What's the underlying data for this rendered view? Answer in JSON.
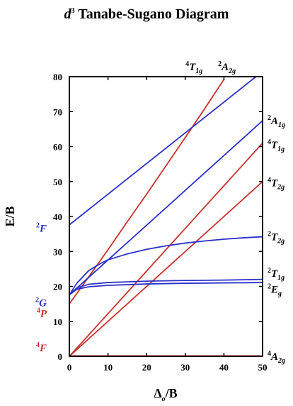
{
  "chart_data": {
    "type": "line",
    "title": {
      "prefix": "d",
      "sup": "3",
      "text": " Tanabe-Sugano Diagram"
    },
    "xlabel": {
      "main": "Δ",
      "sub": "o",
      "rest": "/B"
    },
    "ylabel": "E/B",
    "xlim": [
      0,
      50
    ],
    "ylim": [
      0,
      80
    ],
    "xticks": [
      0,
      10,
      20,
      30,
      40,
      50
    ],
    "yticks": [
      0,
      10,
      20,
      30,
      40,
      50,
      60,
      70,
      80
    ],
    "grid": false,
    "colors": {
      "red": "#c8322c",
      "blue": "#2a30c8"
    },
    "series": [
      {
        "color": "red",
        "x": [
          0,
          50
        ],
        "y": [
          0,
          0
        ]
      },
      {
        "color": "red",
        "x": [
          0,
          50
        ],
        "y": [
          0,
          50
        ]
      },
      {
        "color": "red",
        "x": [
          0,
          50
        ],
        "y": [
          0,
          61
        ]
      },
      {
        "color": "red",
        "x": [
          0,
          5,
          10,
          15,
          20,
          25,
          30,
          35,
          40
        ],
        "y": [
          15,
          22.7,
          30.5,
          38.5,
          46.4,
          54.5,
          62.6,
          70.8,
          79.2
        ]
      },
      {
        "color": "blue",
        "x": [
          0,
          50
        ],
        "y": [
          37.6,
          81.5
        ]
      },
      {
        "color": "blue",
        "x": [
          0,
          50
        ],
        "y": [
          17.6,
          67.4
        ]
      },
      {
        "color": "blue",
        "x": [
          0,
          2,
          5,
          8,
          10,
          15,
          20,
          25,
          30,
          35,
          40,
          45,
          50
        ],
        "y": [
          17.6,
          21,
          24.5,
          26.5,
          27.6,
          29.3,
          30.6,
          31.6,
          32.4,
          33,
          33.5,
          33.9,
          34.2
        ]
      },
      {
        "color": "blue",
        "x": [
          0,
          2,
          5,
          10,
          15,
          20,
          30,
          40,
          50
        ],
        "y": [
          17.6,
          19.6,
          20.6,
          21.1,
          21.3,
          21.5,
          21.7,
          21.8,
          22
        ]
      },
      {
        "color": "blue",
        "x": [
          0,
          2,
          5,
          10,
          15,
          20,
          30,
          40,
          50
        ],
        "y": [
          17.6,
          19.2,
          19.9,
          20.3,
          20.5,
          20.7,
          20.9,
          21,
          21.1
        ]
      }
    ],
    "left_labels": [
      {
        "sup": "2",
        "main": "F",
        "color": "blue",
        "y": 36.6
      },
      {
        "sup": "2",
        "main": "G",
        "color": "blue",
        "y": 15.3
      },
      {
        "sup": "4",
        "main": "P",
        "color": "red",
        "y": 12.3
      },
      {
        "sup": "4",
        "main": "F",
        "color": "red",
        "y": 2.4
      }
    ],
    "right_labels": [
      {
        "sup": "2",
        "main": "A",
        "sub": "1g",
        "y": 67.4
      },
      {
        "sup": "4",
        "main": "T",
        "sub": "1g",
        "y": 60.5
      },
      {
        "sup": "4",
        "main": "T",
        "sub": "2g",
        "y": 49.6
      },
      {
        "sup": "2",
        "main": "T",
        "sub": "2g",
        "y": 34.2
      },
      {
        "sup": "2",
        "main": "T",
        "sub": "1g",
        "y": 23.8
      },
      {
        "sup": "2",
        "main": "E",
        "sub": "g",
        "y": 19.2
      },
      {
        "sup": "4",
        "main": "A",
        "sub": "2g",
        "y": 0
      }
    ],
    "top_labels": [
      {
        "sup": "4",
        "main": "T",
        "sub": "1g",
        "x": 33
      },
      {
        "sup": "2",
        "main": "A",
        "sub": "2g",
        "x": 41.5
      }
    ]
  }
}
